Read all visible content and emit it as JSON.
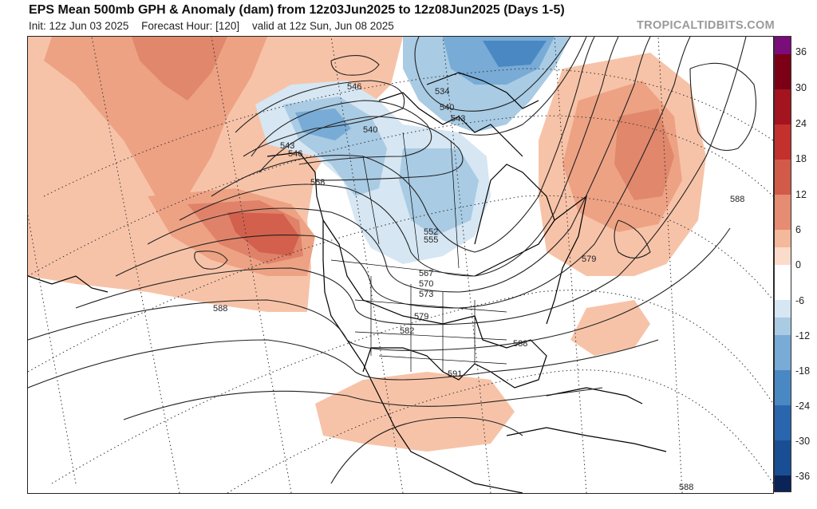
{
  "header": {
    "title": "EPS Mean 500mb GPH & Anomaly (dam) from 12z03Jun2025 to 12z08Jun2025 (Days 1-5)",
    "init": "Init: 12z Jun 03 2025",
    "forecast_hour": "Forecast Hour: [120]",
    "valid": "valid at 12z Sun, Jun 08 2025",
    "brand": "TROPICALTIDBITS.COM"
  },
  "colorbar": {
    "labels": [
      "36",
      "30",
      "24",
      "18",
      "12",
      "6",
      "0",
      "-6",
      "-12",
      "-18",
      "-24",
      "-30",
      "-36"
    ],
    "colors": [
      "#7a0d7a",
      "#7b0016",
      "#a3141e",
      "#c4302b",
      "#d25a48",
      "#e68c72",
      "#f4b89b",
      "#fbdccb",
      "#ffffff",
      "#d6e6f2",
      "#a9cbe4",
      "#78abd5",
      "#4a88c3",
      "#2a66ae",
      "#1a4e94",
      "#0f3878",
      "#0a2458"
    ]
  },
  "map": {
    "contour_labels": [
      "546",
      "534",
      "540",
      "543",
      "540",
      "543",
      "546",
      "558",
      "552",
      "555",
      "567",
      "570",
      "573",
      "579",
      "582",
      "588",
      "591",
      "588",
      "579",
      "588",
      "588"
    ]
  }
}
